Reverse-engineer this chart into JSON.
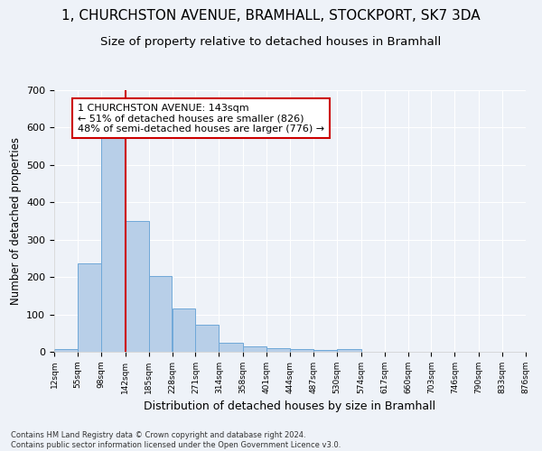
{
  "title_line1": "1, CHURCHSTON AVENUE, BRAMHALL, STOCKPORT, SK7 3DA",
  "title_line2": "Size of property relative to detached houses in Bramhall",
  "xlabel": "Distribution of detached houses by size in Bramhall",
  "ylabel": "Number of detached properties",
  "footnote": "Contains HM Land Registry data © Crown copyright and database right 2024.\nContains public sector information licensed under the Open Government Licence v3.0.",
  "bar_edges": [
    12,
    55,
    98,
    142,
    185,
    228,
    271,
    314,
    358,
    401,
    444,
    487,
    530,
    574,
    617,
    660,
    703,
    746,
    790,
    833,
    876
  ],
  "bar_heights": [
    8,
    236,
    590,
    350,
    202,
    116,
    72,
    25,
    14,
    10,
    8,
    5,
    8,
    0,
    0,
    0,
    0,
    0,
    0,
    0
  ],
  "bar_color": "#b8cfe8",
  "bar_edgecolor": "#6fa8d8",
  "property_size": 143,
  "annotation_line1": "1 CHURCHSTON AVENUE: 143sqm",
  "annotation_line2": "← 51% of detached houses are smaller (826)",
  "annotation_line3": "48% of semi-detached houses are larger (776) →",
  "vline_color": "#cc0000",
  "annotation_box_edgecolor": "#cc0000",
  "annotation_box_facecolor": "#ffffff",
  "annotation_fontsize": 8,
  "ylim": [
    0,
    700
  ],
  "xlim": [
    12,
    876
  ],
  "background_color": "#eef2f8",
  "grid_color": "#ffffff",
  "title1_fontsize": 11,
  "title2_fontsize": 9.5,
  "ylabel_fontsize": 8.5,
  "xlabel_fontsize": 9,
  "ytick_fontsize": 8,
  "xtick_fontsize": 6.5,
  "footnote_fontsize": 6
}
